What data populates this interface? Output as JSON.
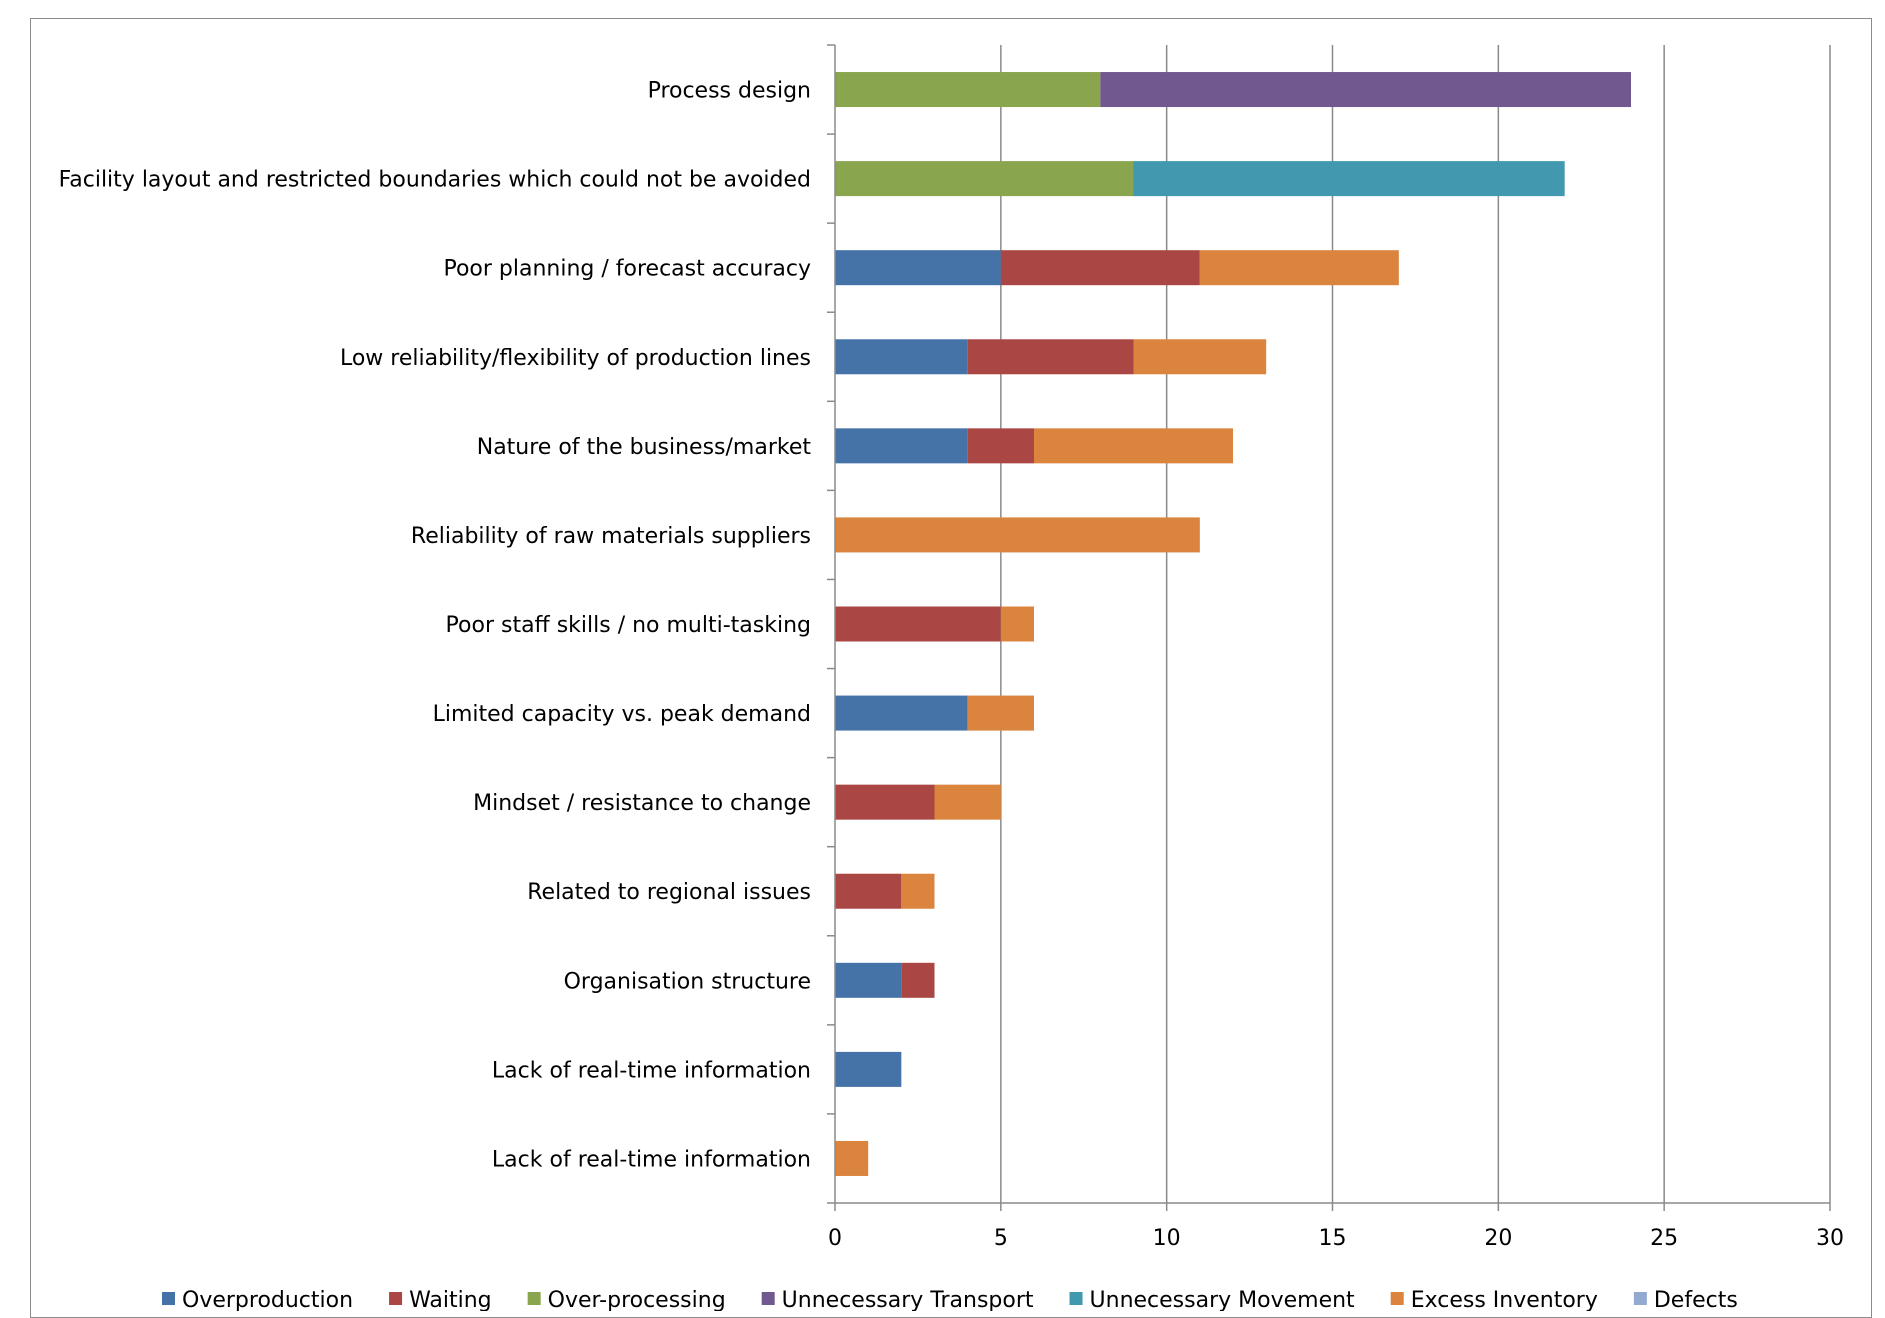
{
  "chart_data": {
    "type": "bar",
    "orientation": "horizontal",
    "stacked": true,
    "title": "",
    "xlabel": "",
    "ylabel": "",
    "xlim": [
      0,
      30
    ],
    "xticks": [
      0,
      5,
      10,
      15,
      20,
      25,
      30
    ],
    "grid": true,
    "legend_position": "bottom",
    "categories": [
      "Process design",
      "Facility layout and restricted boundaries which could not be avoided",
      "Poor planning / forecast accuracy",
      "Low reliability/flexibility of production lines",
      "Nature of the business/market",
      "Reliability of raw materials suppliers",
      "Poor staff skills / no multi-tasking",
      "Limited capacity vs. peak demand",
      "Mindset / resistance to change",
      "Related to regional issues",
      "Organisation structure",
      "Lack of real-time information",
      "Lack of real-time information"
    ],
    "series": [
      {
        "name": "Overproduction",
        "color": "#4572a7",
        "values": [
          0,
          0,
          5,
          4,
          4,
          0,
          0,
          4,
          0,
          0,
          2,
          2,
          0
        ]
      },
      {
        "name": "Waiting",
        "color": "#aa4643",
        "values": [
          0,
          0,
          6,
          5,
          2,
          0,
          5,
          0,
          3,
          2,
          1,
          0,
          0
        ]
      },
      {
        "name": "Over-processing",
        "color": "#89a54e",
        "values": [
          8,
          9,
          0,
          0,
          0,
          0,
          0,
          0,
          0,
          0,
          0,
          0,
          0
        ]
      },
      {
        "name": "Unnecessary Transport",
        "color": "#71588f",
        "values": [
          16,
          0,
          0,
          0,
          0,
          0,
          0,
          0,
          0,
          0,
          0,
          0,
          0
        ]
      },
      {
        "name": "Unnecessary Movement",
        "color": "#4198af",
        "values": [
          0,
          13,
          0,
          0,
          0,
          0,
          0,
          0,
          0,
          0,
          0,
          0,
          0
        ]
      },
      {
        "name": "Excess Inventory",
        "color": "#db843d",
        "values": [
          0,
          0,
          6,
          4,
          6,
          11,
          1,
          2,
          2,
          1,
          0,
          0,
          1
        ]
      },
      {
        "name": "Defects",
        "color": "#93a9cf",
        "values": [
          0,
          0,
          0,
          0,
          0,
          0,
          0,
          0,
          0,
          0,
          0,
          0,
          0
        ]
      }
    ]
  }
}
